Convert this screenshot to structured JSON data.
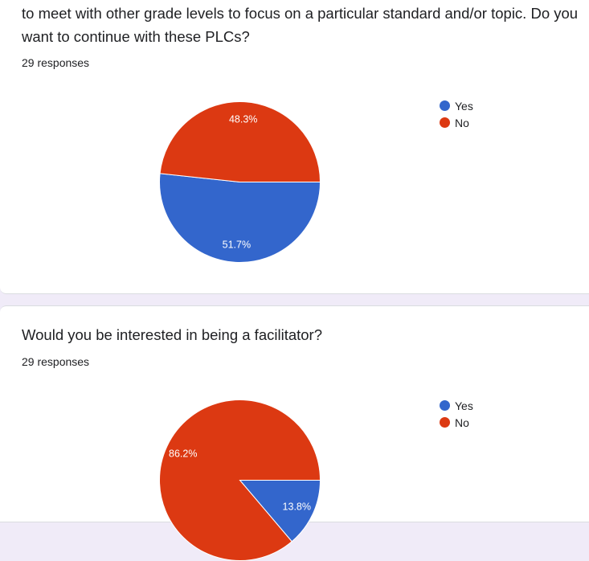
{
  "question1": {
    "title_lines": [
      "to meet with other grade levels to focus on a particular standard and/or topic. Do you",
      "want to continue with these PLCs?"
    ],
    "responses": "29 responses",
    "legend": [
      {
        "label": "Yes",
        "color": "#3366cc"
      },
      {
        "label": "No",
        "color": "#dc3912"
      }
    ]
  },
  "question2": {
    "title": "Would you be interested in being a facilitator?",
    "responses": "29 responses",
    "legend": [
      {
        "label": "Yes",
        "color": "#3366cc"
      },
      {
        "label": "No",
        "color": "#dc3912"
      }
    ]
  },
  "chart_data": [
    {
      "type": "pie",
      "categories": [
        "Yes",
        "No"
      ],
      "values": [
        51.7,
        48.3
      ],
      "labels": [
        "51.7%",
        "48.3%"
      ],
      "colors": [
        "#3366cc",
        "#dc3912"
      ],
      "legend_position": "right"
    },
    {
      "type": "pie",
      "categories": [
        "Yes",
        "No"
      ],
      "values": [
        13.8,
        86.2
      ],
      "labels": [
        "13.8%",
        "86.2%"
      ],
      "colors": [
        "#3366cc",
        "#dc3912"
      ],
      "legend_position": "right"
    }
  ]
}
